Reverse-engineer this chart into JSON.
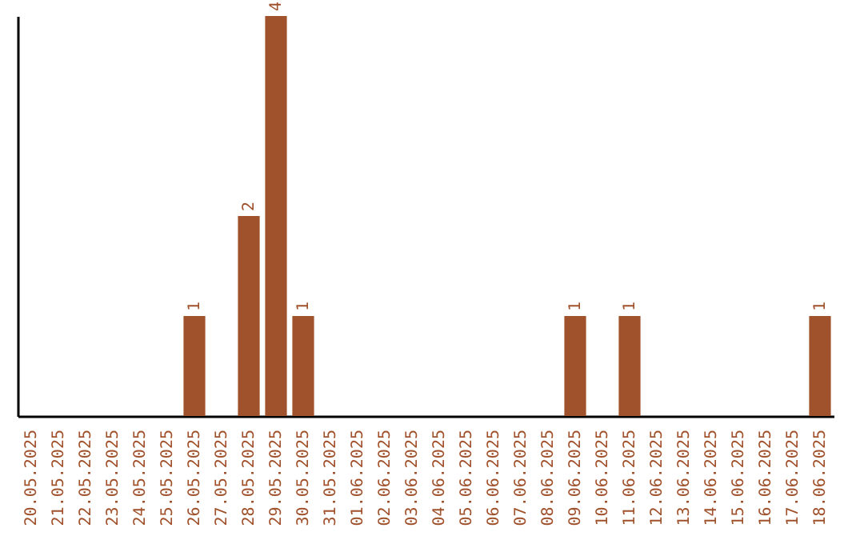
{
  "chart_data": {
    "type": "bar",
    "categories": [
      "20.05.2025",
      "21.05.2025",
      "22.05.2025",
      "23.05.2025",
      "24.05.2025",
      "25.05.2025",
      "26.05.2025",
      "27.05.2025",
      "28.05.2025",
      "29.05.2025",
      "30.05.2025",
      "31.05.2025",
      "01.06.2025",
      "02.06.2025",
      "03.06.2025",
      "04.06.2025",
      "05.06.2025",
      "06.06.2025",
      "07.06.2025",
      "08.06.2025",
      "09.06.2025",
      "10.06.2025",
      "11.06.2025",
      "12.06.2025",
      "13.06.2025",
      "14.06.2025",
      "15.06.2025",
      "16.06.2025",
      "17.06.2025",
      "18.06.2025"
    ],
    "values": [
      0,
      0,
      0,
      0,
      0,
      0,
      1,
      0,
      2,
      4,
      1,
      0,
      0,
      0,
      0,
      0,
      0,
      0,
      0,
      0,
      1,
      0,
      1,
      0,
      0,
      0,
      0,
      0,
      0,
      1
    ],
    "value_labels": [
      null,
      null,
      null,
      null,
      null,
      null,
      "1",
      null,
      "2",
      "4",
      "1",
      null,
      null,
      null,
      null,
      null,
      null,
      null,
      null,
      null,
      "1",
      null,
      "1",
      null,
      null,
      null,
      null,
      null,
      null,
      "1"
    ],
    "color": "#a0522d",
    "tick_labels": "x"
  }
}
